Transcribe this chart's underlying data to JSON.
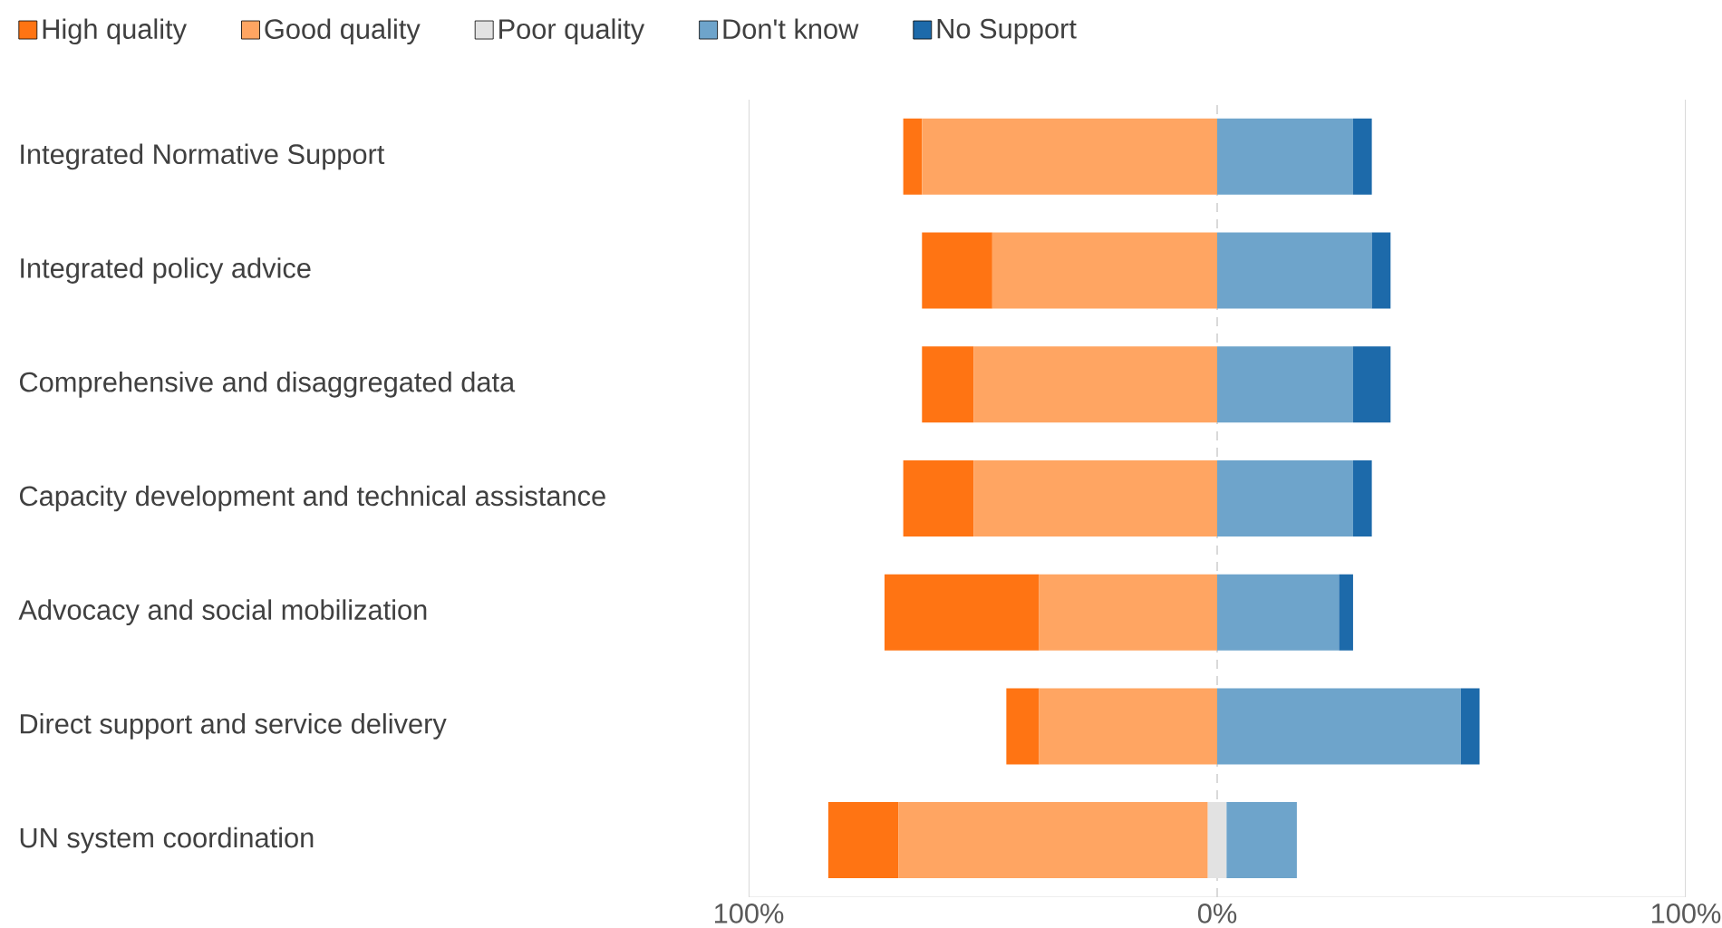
{
  "chart_data": {
    "type": "bar",
    "orientation": "horizontal",
    "categories": [
      "Integrated Normative Support",
      "Integrated policy advice",
      "Comprehensive and disaggregated data",
      "Capacity development and technical assistance",
      "Advocacy and social mobilization",
      "Direct support and service delivery",
      "UN system coordination"
    ],
    "series": [
      {
        "name": "High quality",
        "color": "#ff7413",
        "values": [
          4,
          15,
          11,
          15,
          33,
          7,
          15
        ],
        "base": [
          -67,
          -63,
          -63,
          -67,
          -71,
          -45,
          -83
        ]
      },
      {
        "name": "Good quality",
        "color": "#ffa562",
        "values": [
          63,
          48,
          52,
          52,
          38,
          38,
          66
        ],
        "base": [
          -63,
          -48,
          -52,
          -52,
          -38,
          -38,
          -68
        ]
      },
      {
        "name": "Poor quality",
        "color": "#e2e2e2",
        "values": [
          0,
          0,
          0,
          0,
          0,
          0,
          4
        ],
        "base": [
          null,
          null,
          null,
          null,
          null,
          null,
          -2
        ]
      },
      {
        "name": "Don't know",
        "color": "#6ea4cb",
        "values": [
          29,
          33,
          29,
          29,
          26,
          52,
          15
        ],
        "base": [
          0,
          0,
          0,
          0,
          0,
          0,
          2
        ]
      },
      {
        "name": "No Support",
        "color": "#1d6aaa",
        "values": [
          4,
          4,
          8,
          4,
          3,
          4,
          0
        ],
        "base": [
          29,
          33,
          29,
          29,
          26,
          52,
          null
        ]
      }
    ],
    "xlim": [
      -100,
      100
    ],
    "xticks": [
      {
        "value": -100,
        "label": "100%"
      },
      {
        "value": 0,
        "label": "0%"
      },
      {
        "value": 100,
        "label": "100%"
      }
    ],
    "grid": "x",
    "legend": "top left"
  }
}
